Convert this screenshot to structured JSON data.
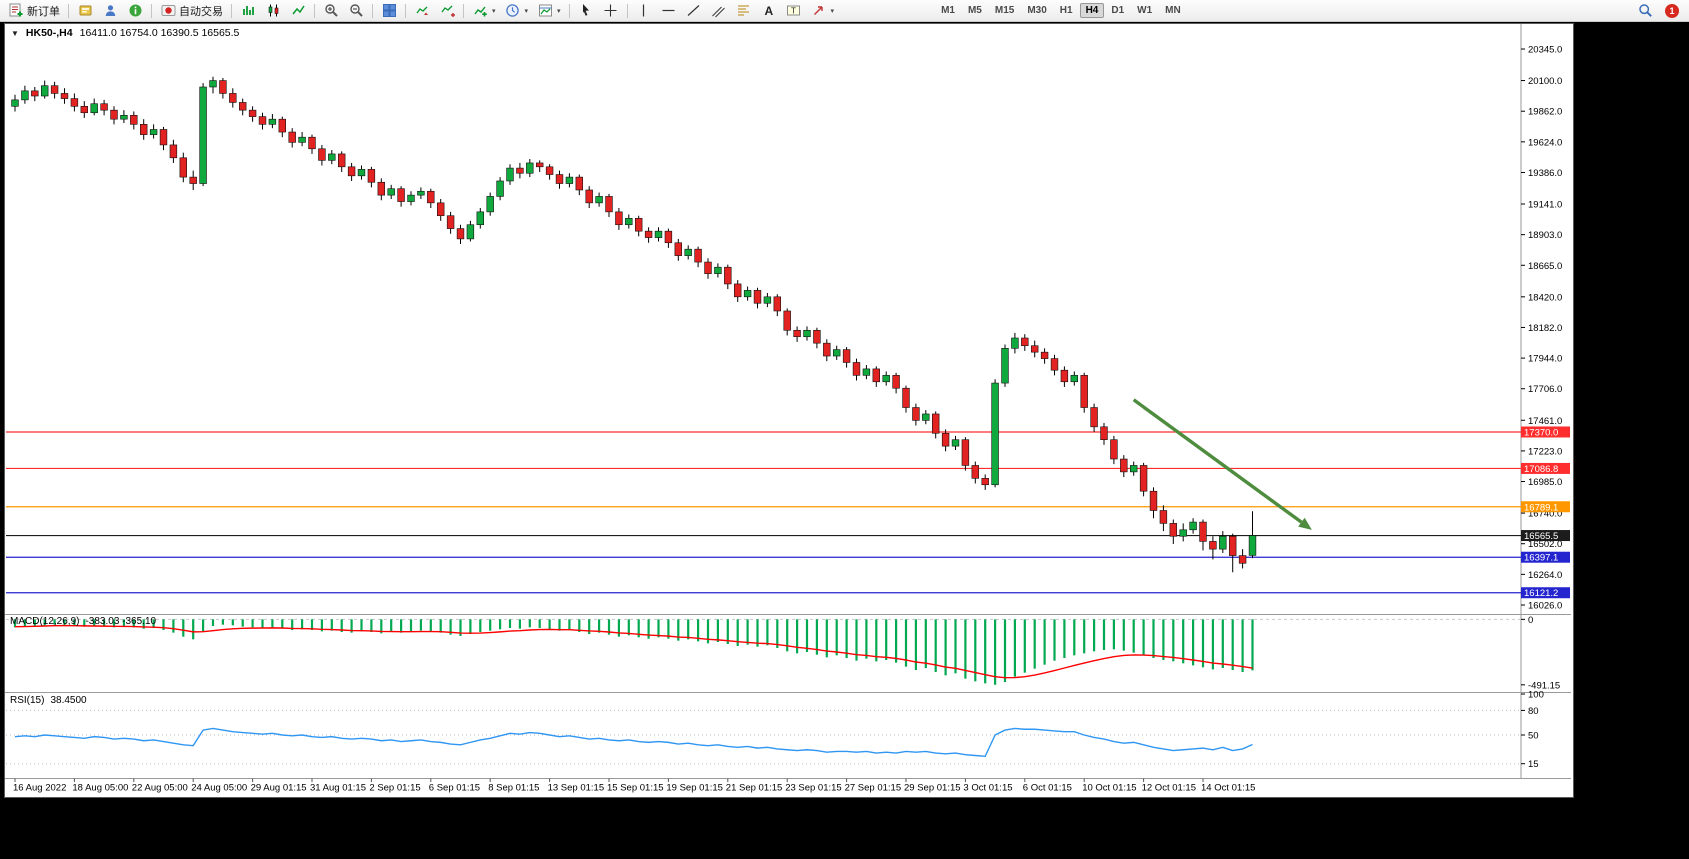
{
  "toolbar": {
    "new_order_label": "新订单",
    "autotrading_label": "自动交易",
    "timeframes": [
      "M1",
      "M5",
      "M15",
      "M30",
      "H1",
      "H4",
      "D1",
      "W1",
      "MN"
    ],
    "active_timeframe": "H4",
    "notification_badge": "1"
  },
  "chart": {
    "symbol_period": "HK50-,H4",
    "ohlc_text": "16411.0 16754.0 16390.5 16565.5",
    "macd_title": "MACD(12,26,9)",
    "macd_values": "-383.03 -365.10",
    "rsi_title": "RSI(15)",
    "rsi_value": "38.4500"
  },
  "chart_data": {
    "type": "candlestick",
    "symbol": "HK50-",
    "timeframe": "H4",
    "last_ohlc": {
      "open": 16411.0,
      "high": 16754.0,
      "low": 16390.5,
      "close": 16565.5
    },
    "price_axis": {
      "max": 20384,
      "min": 15956,
      "ticks": [
        20345.0,
        20100.0,
        19862.0,
        19624.0,
        19386.0,
        19141.0,
        18903.0,
        18665.0,
        18420.0,
        18182.0,
        17944.0,
        17706.0,
        17461.0,
        17223.0,
        16985.0,
        16740.0,
        16502.0,
        16264.0,
        16026.0
      ]
    },
    "time_labels": [
      "16 Aug 2022",
      "18 Aug 05:00",
      "22 Aug 05:00",
      "24 Aug 05:00",
      "29 Aug 01:15",
      "31 Aug 01:15",
      "2 Sep 01:15",
      "6 Sep 01:15",
      "8 Sep 01:15",
      "13 Sep 01:15",
      "15 Sep 01:15",
      "19 Sep 01:15",
      "21 Sep 01:15",
      "23 Sep 01:15",
      "27 Sep 01:15",
      "29 Sep 01:15",
      "3 Oct 01:15",
      "6 Oct 01:15",
      "10 Oct 01:15",
      "12 Oct 01:15",
      "14 Oct 01:15"
    ],
    "candles_per_label": 6,
    "candles": [
      [
        19900,
        19990,
        19860,
        19950
      ],
      [
        19950,
        20060,
        19920,
        20020
      ],
      [
        20020,
        20050,
        19940,
        19980
      ],
      [
        19980,
        20100,
        19960,
        20060
      ],
      [
        20060,
        20090,
        19960,
        20000
      ],
      [
        20000,
        20040,
        19920,
        19960
      ],
      [
        19960,
        20000,
        19860,
        19900
      ],
      [
        19900,
        19940,
        19810,
        19850
      ],
      [
        19850,
        19960,
        19830,
        19920
      ],
      [
        19920,
        19950,
        19830,
        19870
      ],
      [
        19870,
        19900,
        19760,
        19800
      ],
      [
        19800,
        19870,
        19770,
        19830
      ],
      [
        19830,
        19860,
        19720,
        19760
      ],
      [
        19760,
        19800,
        19640,
        19680
      ],
      [
        19680,
        19760,
        19650,
        19720
      ],
      [
        19720,
        19740,
        19560,
        19600
      ],
      [
        19600,
        19640,
        19460,
        19500
      ],
      [
        19500,
        19540,
        19310,
        19350
      ],
      [
        19350,
        19400,
        19250,
        19300
      ],
      [
        19300,
        20080,
        19280,
        20050
      ],
      [
        20050,
        20130,
        20000,
        20100
      ],
      [
        20100,
        20120,
        19960,
        20000
      ],
      [
        20000,
        20040,
        19890,
        19930
      ],
      [
        19930,
        19960,
        19830,
        19870
      ],
      [
        19870,
        19900,
        19780,
        19820
      ],
      [
        19820,
        19850,
        19720,
        19760
      ],
      [
        19760,
        19840,
        19730,
        19800
      ],
      [
        19800,
        19820,
        19660,
        19700
      ],
      [
        19700,
        19730,
        19580,
        19620
      ],
      [
        19620,
        19700,
        19590,
        19660
      ],
      [
        19660,
        19680,
        19530,
        19570
      ],
      [
        19570,
        19600,
        19440,
        19480
      ],
      [
        19480,
        19560,
        19450,
        19530
      ],
      [
        19530,
        19550,
        19390,
        19430
      ],
      [
        19430,
        19460,
        19320,
        19360
      ],
      [
        19360,
        19440,
        19330,
        19410
      ],
      [
        19410,
        19430,
        19270,
        19310
      ],
      [
        19310,
        19340,
        19170,
        19210
      ],
      [
        19210,
        19290,
        19180,
        19260
      ],
      [
        19260,
        19280,
        19120,
        19160
      ],
      [
        19160,
        19240,
        19130,
        19210
      ],
      [
        19210,
        19270,
        19180,
        19240
      ],
      [
        19240,
        19260,
        19110,
        19150
      ],
      [
        19150,
        19180,
        19010,
        19050
      ],
      [
        19050,
        19080,
        18910,
        18950
      ],
      [
        18950,
        18980,
        18830,
        18870
      ],
      [
        18870,
        19010,
        18850,
        18980
      ],
      [
        18980,
        19110,
        18950,
        19080
      ],
      [
        19080,
        19230,
        19050,
        19200
      ],
      [
        19200,
        19350,
        19170,
        19320
      ],
      [
        19320,
        19450,
        19290,
        19420
      ],
      [
        19420,
        19460,
        19340,
        19380
      ],
      [
        19380,
        19490,
        19350,
        19460
      ],
      [
        19460,
        19480,
        19390,
        19430
      ],
      [
        19430,
        19450,
        19330,
        19370
      ],
      [
        19370,
        19400,
        19260,
        19300
      ],
      [
        19300,
        19380,
        19270,
        19350
      ],
      [
        19350,
        19370,
        19210,
        19250
      ],
      [
        19250,
        19280,
        19110,
        19150
      ],
      [
        19150,
        19230,
        19120,
        19200
      ],
      [
        19200,
        19220,
        19040,
        19080
      ],
      [
        19080,
        19110,
        18940,
        18980
      ],
      [
        18980,
        19060,
        18950,
        19030
      ],
      [
        19030,
        19050,
        18890,
        18930
      ],
      [
        18930,
        18960,
        18840,
        18880
      ],
      [
        18880,
        18960,
        18850,
        18930
      ],
      [
        18930,
        18950,
        18800,
        18840
      ],
      [
        18840,
        18870,
        18700,
        18740
      ],
      [
        18740,
        18820,
        18710,
        18790
      ],
      [
        18790,
        18810,
        18650,
        18690
      ],
      [
        18690,
        18720,
        18560,
        18600
      ],
      [
        18600,
        18680,
        18570,
        18650
      ],
      [
        18650,
        18670,
        18480,
        18520
      ],
      [
        18520,
        18550,
        18380,
        18420
      ],
      [
        18420,
        18500,
        18390,
        18470
      ],
      [
        18470,
        18490,
        18330,
        18370
      ],
      [
        18370,
        18450,
        18340,
        18420
      ],
      [
        18420,
        18440,
        18270,
        18310
      ],
      [
        18310,
        18330,
        18120,
        18160
      ],
      [
        18160,
        18190,
        18070,
        18110
      ],
      [
        18110,
        18190,
        18080,
        18160
      ],
      [
        18160,
        18180,
        18020,
        18060
      ],
      [
        18060,
        18090,
        17920,
        17960
      ],
      [
        17960,
        18040,
        17930,
        18010
      ],
      [
        18010,
        18030,
        17870,
        17910
      ],
      [
        17910,
        17940,
        17770,
        17810
      ],
      [
        17810,
        17890,
        17780,
        17860
      ],
      [
        17860,
        17880,
        17720,
        17760
      ],
      [
        17760,
        17840,
        17730,
        17810
      ],
      [
        17810,
        17830,
        17670,
        17710
      ],
      [
        17710,
        17730,
        17520,
        17560
      ],
      [
        17560,
        17590,
        17420,
        17460
      ],
      [
        17460,
        17540,
        17430,
        17510
      ],
      [
        17510,
        17530,
        17320,
        17360
      ],
      [
        17360,
        17390,
        17220,
        17260
      ],
      [
        17260,
        17340,
        17230,
        17310
      ],
      [
        17310,
        17330,
        17070,
        17110
      ],
      [
        17110,
        17140,
        16970,
        17010
      ],
      [
        17010,
        17040,
        16920,
        16960
      ],
      [
        16960,
        17780,
        16940,
        17750
      ],
      [
        17750,
        18050,
        17720,
        18020
      ],
      [
        18020,
        18140,
        17980,
        18100
      ],
      [
        18100,
        18130,
        18000,
        18040
      ],
      [
        18040,
        18080,
        17950,
        17990
      ],
      [
        17990,
        18020,
        17900,
        17940
      ],
      [
        17940,
        17970,
        17810,
        17850
      ],
      [
        17850,
        17880,
        17720,
        17760
      ],
      [
        17760,
        17840,
        17730,
        17810
      ],
      [
        17810,
        17830,
        17520,
        17560
      ],
      [
        17560,
        17590,
        17370,
        17410
      ],
      [
        17410,
        17440,
        17270,
        17310
      ],
      [
        17310,
        17340,
        17120,
        17160
      ],
      [
        17160,
        17190,
        17020,
        17060
      ],
      [
        17060,
        17140,
        17030,
        17110
      ],
      [
        17110,
        17130,
        16870,
        16910
      ],
      [
        16910,
        16940,
        16700,
        16760
      ],
      [
        16760,
        16800,
        16600,
        16660
      ],
      [
        16660,
        16690,
        16500,
        16560
      ],
      [
        16560,
        16660,
        16520,
        16610
      ],
      [
        16610,
        16700,
        16580,
        16670
      ],
      [
        16670,
        16690,
        16450,
        16520
      ],
      [
        16520,
        16560,
        16380,
        16460
      ],
      [
        16460,
        16600,
        16430,
        16560
      ],
      [
        16560,
        16580,
        16280,
        16410
      ],
      [
        16410,
        16460,
        16310,
        16350
      ],
      [
        16411,
        16754,
        16390.5,
        16565.5
      ]
    ],
    "levels": [
      {
        "price": 17370.0,
        "label": "17370.0",
        "color": "#ff2e2e"
      },
      {
        "price": 17086.8,
        "label": "17086.8",
        "color": "#ff2e2e"
      },
      {
        "price": 16789.1,
        "label": "16789.1",
        "color": "#ff9800"
      },
      {
        "price": 16565.5,
        "label": "16565.5",
        "color": "#1c1c1c",
        "current_price": true
      },
      {
        "price": 16397.1,
        "label": "16397.1",
        "color": "#2525cf"
      },
      {
        "price": 16121.2,
        "label": "16121.2",
        "color": "#2525cf"
      }
    ],
    "arrow": {
      "from_index": 113,
      "from_price": 17620,
      "to_index": 131,
      "to_price": 16610,
      "color": "#4e8c3e"
    },
    "macd": {
      "params": "12,26,9",
      "current": -383.03,
      "signal_current": -365.1,
      "vmax": 25,
      "vmin": -530,
      "hist_color": "#00a84f",
      "signal_color": "#ff0000",
      "axis_labels": [
        {
          "value": 0,
          "label": "0"
        },
        {
          "value": -491.15,
          "label": "-491.15"
        }
      ],
      "histogram": [
        -60,
        -55,
        -50,
        -45,
        -40,
        -45,
        -50,
        -55,
        -50,
        -55,
        -60,
        -55,
        -60,
        -70,
        -65,
        -80,
        -100,
        -130,
        -150,
        -90,
        -50,
        -40,
        -45,
        -55,
        -60,
        -65,
        -60,
        -70,
        -80,
        -75,
        -80,
        -90,
        -85,
        -95,
        -100,
        -90,
        -95,
        -105,
        -95,
        -100,
        -90,
        -85,
        -90,
        -100,
        -115,
        -125,
        -110,
        -95,
        -85,
        -75,
        -65,
        -70,
        -60,
        -65,
        -75,
        -85,
        -80,
        -95,
        -110,
        -100,
        -115,
        -130,
        -120,
        -135,
        -145,
        -135,
        -145,
        -160,
        -150,
        -165,
        -180,
        -170,
        -185,
        -200,
        -190,
        -205,
        -195,
        -215,
        -240,
        -255,
        -245,
        -265,
        -285,
        -270,
        -290,
        -310,
        -295,
        -315,
        -305,
        -325,
        -355,
        -380,
        -365,
        -395,
        -420,
        -405,
        -445,
        -465,
        -480,
        -491,
        -470,
        -430,
        -400,
        -370,
        -340,
        -310,
        -290,
        -270,
        -255,
        -240,
        -230,
        -225,
        -235,
        -250,
        -270,
        -290,
        -305,
        -315,
        -330,
        -345,
        -360,
        -375,
        -365,
        -380,
        -395,
        -383.03
      ],
      "signal": [
        -55,
        -54,
        -52,
        -50,
        -48,
        -47,
        -48,
        -49,
        -50,
        -51,
        -52,
        -53,
        -54,
        -57,
        -59,
        -63,
        -70,
        -81,
        -94,
        -93,
        -85,
        -77,
        -71,
        -67,
        -66,
        -65,
        -64,
        -65,
        -68,
        -69,
        -71,
        -75,
        -77,
        -80,
        -84,
        -85,
        -87,
        -91,
        -92,
        -93,
        -93,
        -92,
        -92,
        -93,
        -97,
        -103,
        -104,
        -103,
        -99,
        -94,
        -88,
        -85,
        -80,
        -77,
        -76,
        -78,
        -78,
        -82,
        -87,
        -90,
        -95,
        -102,
        -106,
        -112,
        -118,
        -122,
        -126,
        -133,
        -136,
        -142,
        -150,
        -154,
        -160,
        -168,
        -173,
        -179,
        -182,
        -189,
        -199,
        -210,
        -217,
        -227,
        -238,
        -245,
        -254,
        -265,
        -271,
        -280,
        -285,
        -293,
        -305,
        -320,
        -329,
        -342,
        -358,
        -367,
        -383,
        -399,
        -415,
        -430,
        -438,
        -437,
        -430,
        -418,
        -402,
        -384,
        -365,
        -346,
        -328,
        -310,
        -294,
        -280,
        -271,
        -267,
        -268,
        -272,
        -279,
        -286,
        -295,
        -305,
        -316,
        -328,
        -335,
        -344,
        -354,
        -365.1
      ]
    },
    "rsi": {
      "period": 15,
      "current": 38.45,
      "line_color": "#2f96f3",
      "levels": [
        80,
        50,
        15
      ],
      "axis_labels": [
        {
          "value": 100,
          "label": "100"
        },
        {
          "value": 80,
          "label": "80"
        },
        {
          "value": 50,
          "label": "50"
        },
        {
          "value": 15,
          "label": "15"
        }
      ],
      "values": [
        48,
        49,
        48,
        50,
        49,
        48,
        47,
        46,
        48,
        47,
        45,
        46,
        45,
        43,
        44,
        42,
        40,
        38,
        37,
        56,
        58,
        56,
        54,
        53,
        52,
        51,
        52,
        50,
        49,
        50,
        48,
        47,
        48,
        46,
        45,
        46,
        45,
        43,
        44,
        42,
        43,
        44,
        42,
        41,
        39,
        38,
        41,
        44,
        46,
        49,
        52,
        51,
        53,
        52,
        50,
        48,
        49,
        47,
        45,
        46,
        44,
        43,
        44,
        42,
        41,
        42,
        41,
        39,
        40,
        38,
        37,
        38,
        36,
        35,
        36,
        34,
        35,
        33,
        32,
        31,
        32,
        31,
        29,
        30,
        30,
        29,
        30,
        28,
        29,
        28,
        30,
        29,
        30,
        28,
        27,
        28,
        26,
        25,
        24,
        50,
        56,
        58,
        57,
        57,
        56,
        55,
        54,
        54,
        50,
        47,
        45,
        42,
        40,
        41,
        38,
        35,
        33,
        31,
        32,
        33,
        34,
        32,
        35,
        31,
        33,
        38.45
      ]
    },
    "colors": {
      "up": "#10a93e",
      "down": "#e32222",
      "wick": "#000000",
      "background": "#ffffff",
      "axis_text": "#000000"
    }
  }
}
